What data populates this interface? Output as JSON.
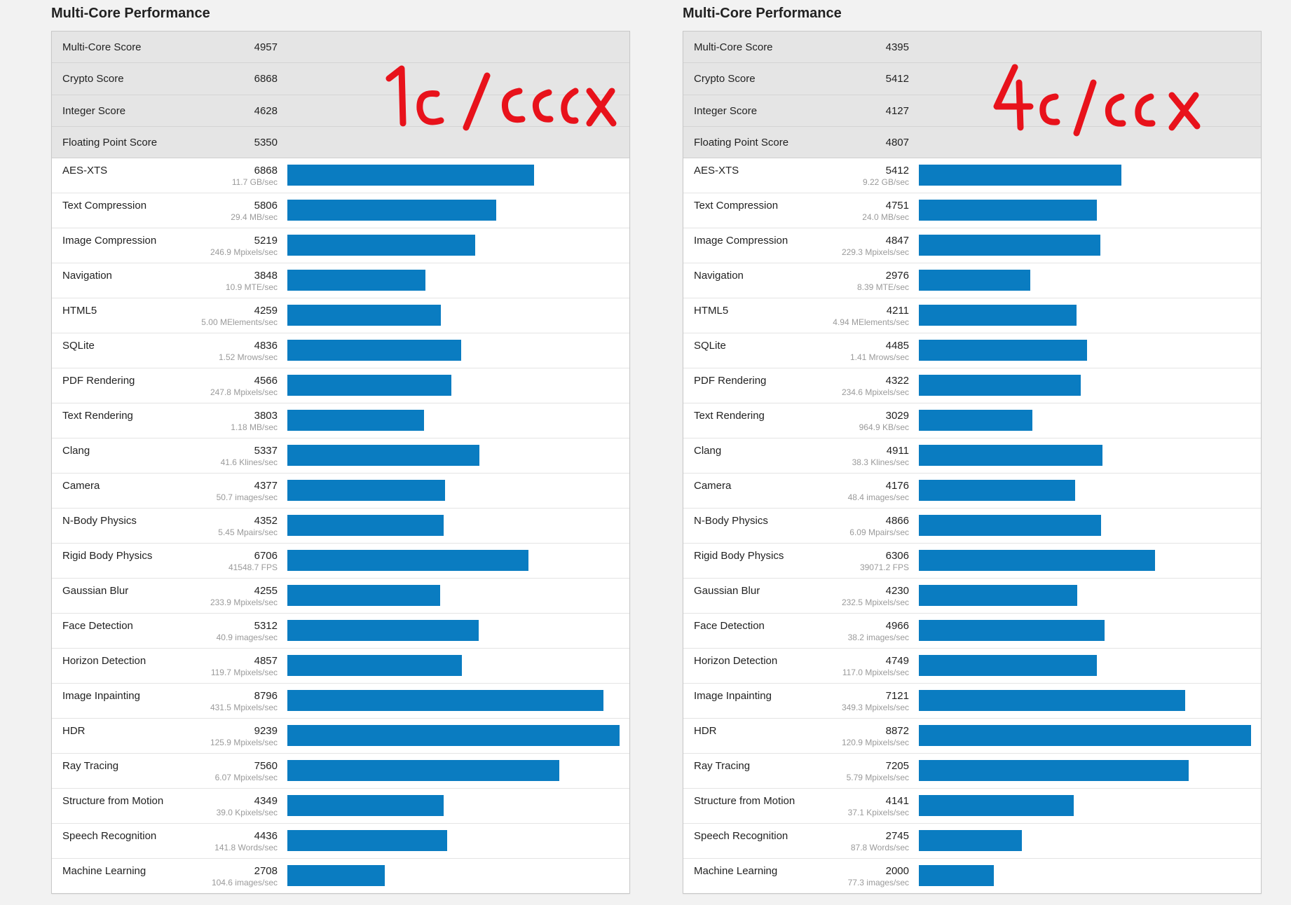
{
  "colors": {
    "bar": "#0a7cc1",
    "annotation": "#e8121b"
  },
  "panels": [
    {
      "title": "Multi-Core Performance",
      "annotation": "1c/ccx",
      "summary": [
        {
          "name": "Multi-Core Score",
          "score": "4957"
        },
        {
          "name": "Crypto Score",
          "score": "6868"
        },
        {
          "name": "Integer Score",
          "score": "4628"
        },
        {
          "name": "Floating Point Score",
          "score": "5350"
        }
      ],
      "benchmarks": [
        {
          "name": "AES-XTS",
          "score": "6868",
          "rate": "11.7 GB/sec"
        },
        {
          "name": "Text Compression",
          "score": "5806",
          "rate": "29.4 MB/sec"
        },
        {
          "name": "Image Compression",
          "score": "5219",
          "rate": "246.9 Mpixels/sec"
        },
        {
          "name": "Navigation",
          "score": "3848",
          "rate": "10.9 MTE/sec"
        },
        {
          "name": "HTML5",
          "score": "4259",
          "rate": "5.00 MElements/sec"
        },
        {
          "name": "SQLite",
          "score": "4836",
          "rate": "1.52 Mrows/sec"
        },
        {
          "name": "PDF Rendering",
          "score": "4566",
          "rate": "247.8 Mpixels/sec"
        },
        {
          "name": "Text Rendering",
          "score": "3803",
          "rate": "1.18 MB/sec"
        },
        {
          "name": "Clang",
          "score": "5337",
          "rate": "41.6 Klines/sec"
        },
        {
          "name": "Camera",
          "score": "4377",
          "rate": "50.7 images/sec"
        },
        {
          "name": "N-Body Physics",
          "score": "4352",
          "rate": "5.45 Mpairs/sec"
        },
        {
          "name": "Rigid Body Physics",
          "score": "6706",
          "rate": "41548.7 FPS"
        },
        {
          "name": "Gaussian Blur",
          "score": "4255",
          "rate": "233.9 Mpixels/sec"
        },
        {
          "name": "Face Detection",
          "score": "5312",
          "rate": "40.9 images/sec"
        },
        {
          "name": "Horizon Detection",
          "score": "4857",
          "rate": "119.7 Mpixels/sec"
        },
        {
          "name": "Image Inpainting",
          "score": "8796",
          "rate": "431.5 Mpixels/sec"
        },
        {
          "name": "HDR",
          "score": "9239",
          "rate": "125.9 Mpixels/sec"
        },
        {
          "name": "Ray Tracing",
          "score": "7560",
          "rate": "6.07 Mpixels/sec"
        },
        {
          "name": "Structure from Motion",
          "score": "4349",
          "rate": "39.0 Kpixels/sec"
        },
        {
          "name": "Speech Recognition",
          "score": "4436",
          "rate": "141.8 Words/sec"
        },
        {
          "name": "Machine Learning",
          "score": "2708",
          "rate": "104.6 images/sec"
        }
      ]
    },
    {
      "title": "Multi-Core Performance",
      "annotation": "4c/ccx",
      "summary": [
        {
          "name": "Multi-Core Score",
          "score": "4395"
        },
        {
          "name": "Crypto Score",
          "score": "5412"
        },
        {
          "name": "Integer Score",
          "score": "4127"
        },
        {
          "name": "Floating Point Score",
          "score": "4807"
        }
      ],
      "benchmarks": [
        {
          "name": "AES-XTS",
          "score": "5412",
          "rate": "9.22 GB/sec"
        },
        {
          "name": "Text Compression",
          "score": "4751",
          "rate": "24.0 MB/sec"
        },
        {
          "name": "Image Compression",
          "score": "4847",
          "rate": "229.3 Mpixels/sec"
        },
        {
          "name": "Navigation",
          "score": "2976",
          "rate": "8.39 MTE/sec"
        },
        {
          "name": "HTML5",
          "score": "4211",
          "rate": "4.94 MElements/sec"
        },
        {
          "name": "SQLite",
          "score": "4485",
          "rate": "1.41 Mrows/sec"
        },
        {
          "name": "PDF Rendering",
          "score": "4322",
          "rate": "234.6 Mpixels/sec"
        },
        {
          "name": "Text Rendering",
          "score": "3029",
          "rate": "964.9 KB/sec"
        },
        {
          "name": "Clang",
          "score": "4911",
          "rate": "38.3 Klines/sec"
        },
        {
          "name": "Camera",
          "score": "4176",
          "rate": "48.4 images/sec"
        },
        {
          "name": "N-Body Physics",
          "score": "4866",
          "rate": "6.09 Mpairs/sec"
        },
        {
          "name": "Rigid Body Physics",
          "score": "6306",
          "rate": "39071.2 FPS"
        },
        {
          "name": "Gaussian Blur",
          "score": "4230",
          "rate": "232.5 Mpixels/sec"
        },
        {
          "name": "Face Detection",
          "score": "4966",
          "rate": "38.2 images/sec"
        },
        {
          "name": "Horizon Detection",
          "score": "4749",
          "rate": "117.0 Mpixels/sec"
        },
        {
          "name": "Image Inpainting",
          "score": "7121",
          "rate": "349.3 Mpixels/sec"
        },
        {
          "name": "HDR",
          "score": "8872",
          "rate": "120.9 Mpixels/sec"
        },
        {
          "name": "Ray Tracing",
          "score": "7205",
          "rate": "5.79 Mpixels/sec"
        },
        {
          "name": "Structure from Motion",
          "score": "4141",
          "rate": "37.1 Kpixels/sec"
        },
        {
          "name": "Speech Recognition",
          "score": "2745",
          "rate": "87.8 Words/sec"
        },
        {
          "name": "Machine Learning",
          "score": "2000",
          "rate": "77.3 images/sec"
        }
      ]
    }
  ],
  "chart_data": [
    {
      "type": "bar",
      "orientation": "horizontal",
      "title": "Multi-Core Performance",
      "categories": [
        "AES-XTS",
        "Text Compression",
        "Image Compression",
        "Navigation",
        "HTML5",
        "SQLite",
        "PDF Rendering",
        "Text Rendering",
        "Clang",
        "Camera",
        "N-Body Physics",
        "Rigid Body Physics",
        "Gaussian Blur",
        "Face Detection",
        "Horizon Detection",
        "Image Inpainting",
        "HDR",
        "Ray Tracing",
        "Structure from Motion",
        "Speech Recognition",
        "Machine Learning"
      ],
      "values": [
        6868,
        5806,
        5219,
        3848,
        4259,
        4836,
        4566,
        3803,
        5337,
        4377,
        4352,
        6706,
        4255,
        5312,
        4857,
        8796,
        9239,
        7560,
        4349,
        4436,
        2708
      ]
    },
    {
      "type": "bar",
      "orientation": "horizontal",
      "title": "Multi-Core Performance",
      "categories": [
        "AES-XTS",
        "Text Compression",
        "Image Compression",
        "Navigation",
        "HTML5",
        "SQLite",
        "PDF Rendering",
        "Text Rendering",
        "Clang",
        "Camera",
        "N-Body Physics",
        "Rigid Body Physics",
        "Gaussian Blur",
        "Face Detection",
        "Horizon Detection",
        "Image Inpainting",
        "HDR",
        "Ray Tracing",
        "Structure from Motion",
        "Speech Recognition",
        "Machine Learning"
      ],
      "values": [
        5412,
        4751,
        4847,
        2976,
        4211,
        4485,
        4322,
        3029,
        4911,
        4176,
        4866,
        6306,
        4230,
        4966,
        4749,
        7121,
        8872,
        7205,
        4141,
        2745,
        2000
      ]
    }
  ]
}
